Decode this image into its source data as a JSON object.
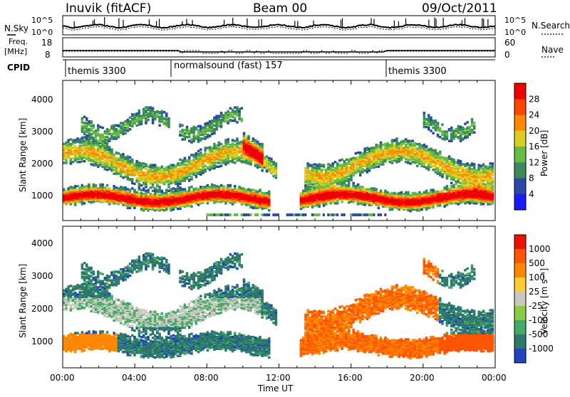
{
  "header": {
    "station": "Inuvik (fitACF)",
    "beam": "Beam 00",
    "date": "09/Oct/2011"
  },
  "summary": {
    "nsky_label": "N.Sky",
    "nsearch_label": "N.Search",
    "noise_ticks": [
      "10^5",
      "10^0"
    ],
    "freq_label_1": "Freq.",
    "freq_label_2": "[MHz]",
    "freq_ticks": [
      "18",
      "8"
    ],
    "nave_label": "Nave",
    "nave_ticks": [
      "60",
      "0"
    ],
    "cpid_label": "CPID",
    "cpid_segments": [
      "themis 3300",
      "normalsound (fast) 157",
      "themis 3300"
    ]
  },
  "panels": {
    "power": {
      "ylabel": "Slant Range [km]",
      "yticks": [
        "1000",
        "2000",
        "3000",
        "4000"
      ],
      "cbar_label": "Power [dB]",
      "cbar_ticks": [
        "4",
        "8",
        "12",
        "16",
        "20",
        "24",
        "28"
      ],
      "cbar_colors": [
        "#1a1aff",
        "#2b4aa8",
        "#3a8a5a",
        "#66bb44",
        "#ddcc22",
        "#ff8800",
        "#ff4400",
        "#ee0000"
      ]
    },
    "velocity": {
      "ylabel": "Slant Range [km]",
      "yticks": [
        "1000",
        "2000",
        "3000",
        "4000"
      ],
      "cbar_label": "Velocity [m s⁻¹]",
      "cbar_ticks": [
        "1000",
        "500",
        "100",
        "25",
        "-25",
        "-100",
        "-500",
        "-1000"
      ],
      "cbar_colors": [
        "#2244bb",
        "#2e7a6a",
        "#44aa66",
        "#88cc44",
        "#c8c8c0",
        "#ffcc33",
        "#ff8800",
        "#ff5500",
        "#ee1100"
      ]
    }
  },
  "xaxis": {
    "label": "Time UT",
    "ticks": [
      "00:00",
      "04:00",
      "08:00",
      "12:00",
      "16:00",
      "20:00",
      "00:00"
    ]
  },
  "chart_data": {
    "type": "heatmap",
    "title": "Inuvik (fitACF) Beam 00 09/Oct/2011",
    "xlabel": "Time UT",
    "ylabel": "Slant Range [km]",
    "xlim": [
      "00:00",
      "24:00"
    ],
    "ylim": [
      180,
      4500
    ],
    "series": [
      {
        "name": "Power [dB]",
        "range": [
          0,
          30
        ]
      },
      {
        "name": "Velocity [m s-1]",
        "range": [
          -1000,
          1000
        ]
      }
    ]
  }
}
